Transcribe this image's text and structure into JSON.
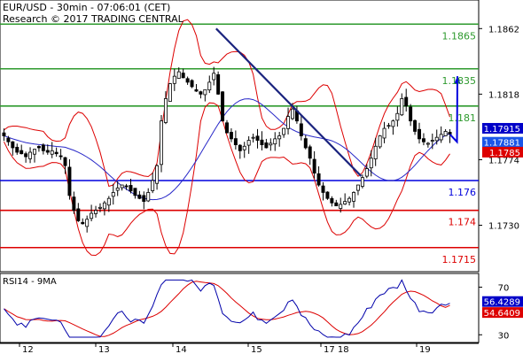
{
  "header": {
    "line1": "EUR/USD - 30min - 07:06:01 (CET)",
    "line2": "Research © 2017 TRADING CENTRAL"
  },
  "chart_data": {
    "type": "candlestick",
    "symbol": "EUR/USD",
    "timeframe": "30min",
    "x_ticks": [
      "12",
      "13",
      "14",
      "15",
      "17 18",
      "19"
    ],
    "price_axis": {
      "range": [
        1.17,
        1.188
      ],
      "ticks": [
        {
          "label": "1.1862",
          "value": 1.1862
        },
        {
          "label": "1.1818",
          "value": 1.1818
        },
        {
          "label": "1.1774",
          "value": 1.1774
        },
        {
          "label": "1.1730",
          "value": 1.173
        }
      ]
    },
    "levels": [
      {
        "label": "1.1865",
        "value": 1.1865,
        "color": "#2e9a2e",
        "label_color": "#2e9a2e"
      },
      {
        "label": "1.1835",
        "value": 1.1835,
        "color": "#2e9a2e",
        "label_color": "#2e9a2e"
      },
      {
        "label": "1.181",
        "value": 1.181,
        "color": "#2e9a2e",
        "label_color": "#2e9a2e"
      },
      {
        "label": "1.176",
        "value": 1.176,
        "color": "#0000dd",
        "label_color": "#0000dd"
      },
      {
        "label": "1.174",
        "value": 1.174,
        "color": "#dd0000",
        "label_color": "#dd0000"
      },
      {
        "label": "1.1715",
        "value": 1.1715,
        "color": "#dd0000",
        "label_color": "#dd0000"
      }
    ],
    "price_tags": [
      {
        "label": "1.17915",
        "value": 1.17915,
        "color": "#0000c8"
      },
      {
        "label": "1.17881",
        "value": 1.17881,
        "color": "#1a56e8"
      },
      {
        "label": "1.1785",
        "value": 1.1785,
        "color": "#dd0000"
      }
    ],
    "close_path": [
      1.179,
      1.1786,
      1.1782,
      1.1779,
      1.1778,
      1.1776,
      1.1779,
      1.1781,
      1.1782,
      1.178,
      1.1779,
      1.178,
      1.1778,
      1.1776,
      1.177,
      1.175,
      1.174,
      1.1733,
      1.1731,
      1.1734,
      1.1738,
      1.174,
      1.1742,
      1.1745,
      1.1748,
      1.1752,
      1.1755,
      1.1757,
      1.1756,
      1.1753,
      1.175,
      1.1748,
      1.1746,
      1.1752,
      1.176,
      1.177,
      1.18,
      1.1815,
      1.1825,
      1.183,
      1.1833,
      1.1829,
      1.1826,
      1.1823,
      1.182,
      1.1818,
      1.1821,
      1.1826,
      1.1832,
      1.1818,
      1.18,
      1.1792,
      1.1788,
      1.1784,
      1.178,
      1.1783,
      1.1787,
      1.1789,
      1.1787,
      1.1784,
      1.1782,
      1.1785,
      1.1788,
      1.179,
      1.1795,
      1.1803,
      1.1808,
      1.18,
      1.179,
      1.1782,
      1.1775,
      1.1765,
      1.1757,
      1.1752,
      1.1748,
      1.1745,
      1.1743,
      1.1744,
      1.1746,
      1.1748,
      1.1752,
      1.1757,
      1.1762,
      1.1768,
      1.1775,
      1.1783,
      1.179,
      1.1795,
      1.1797,
      1.18,
      1.1805,
      1.1815,
      1.181,
      1.18,
      1.1793,
      1.1788,
      1.1786,
      1.1785,
      1.1787,
      1.1789,
      1.1791,
      1.1793,
      1.1791
    ],
    "trendline": {
      "from": {
        "x_frac": 0.476,
        "value": 1.1862
      },
      "to": {
        "x_frac": 0.798,
        "value": 1.1763
      }
    },
    "projection": [
      1.1786,
      1.183
    ],
    "rsi": {
      "title": "RSI14 - 9MA",
      "range": [
        25,
        80
      ],
      "ticks": [
        {
          "label": "70",
          "value": 70
        },
        {
          "label": "30",
          "value": 30
        }
      ],
      "tags": [
        {
          "label": "56.4289",
          "value": 56.4289,
          "color": "#0000c8"
        },
        {
          "label": "54.6409",
          "value": 54.6409,
          "color": "#dd0000"
        }
      ]
    },
    "colors": {
      "candles": "#000000",
      "bollinger": "#dd0000",
      "moving_average": "#2828c8",
      "trendline": "#1a237e",
      "projection": "#0000dd",
      "rsi": "#0000aa",
      "rsi_ma": "#dd0000"
    }
  }
}
